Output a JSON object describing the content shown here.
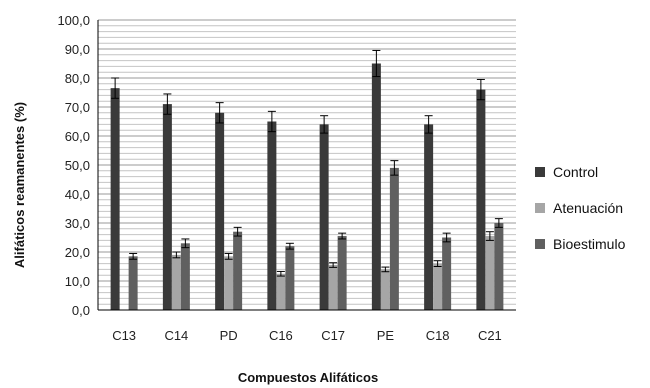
{
  "chart_data": {
    "type": "bar",
    "title": "",
    "xlabel": "Compuestos Alifáticos",
    "ylabel": "Alifáticos reamanentes (%)",
    "ylim": [
      0,
      100
    ],
    "yticks": [
      "0,0",
      "10,0",
      "20,0",
      "30,0",
      "40,0",
      "50,0",
      "60,0",
      "70,0",
      "80,0",
      "90,0",
      "100,0"
    ],
    "grid": true,
    "legend_position": "right",
    "categories": [
      "C13",
      "C14",
      "PD",
      "C16",
      "C17",
      "PE",
      "C18",
      "C21"
    ],
    "series": [
      {
        "name": "Control",
        "color": "#3a3a3a",
        "values": [
          76.5,
          71,
          68,
          65,
          64,
          85,
          64,
          76
        ],
        "errors": [
          3.5,
          3.5,
          3.5,
          3.5,
          3,
          4.5,
          3,
          3.5
        ]
      },
      {
        "name": "Atenuación",
        "color": "#a6a6a6",
        "values": [
          null,
          19,
          18.5,
          12.5,
          15.5,
          14,
          16,
          25.5
        ],
        "errors": [
          null,
          1,
          1,
          0.8,
          0.8,
          0.8,
          1,
          1.5
        ]
      },
      {
        "name": "Bioestimulo",
        "color": "#606060",
        "values": [
          18.5,
          23,
          27,
          22,
          25.5,
          49,
          25,
          30
        ],
        "errors": [
          1,
          1.5,
          1.5,
          1,
          1,
          2.5,
          1.5,
          1.5
        ]
      }
    ]
  }
}
